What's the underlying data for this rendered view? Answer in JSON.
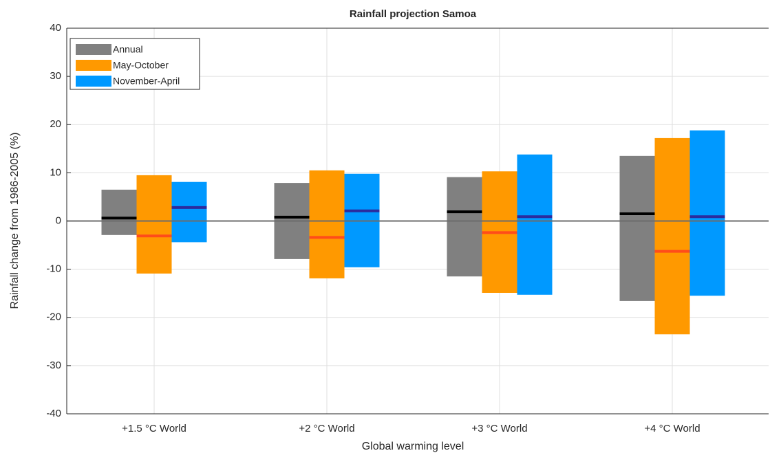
{
  "chart_data": {
    "type": "range_bar",
    "title": "Rainfall projection Samoa",
    "xlabel": "Global warming level",
    "ylabel": "Rainfall change from 1986-2005 (%)",
    "categories": [
      "+1.5 °C World",
      "+2 °C World",
      "+3 °C World",
      "+4 °C World"
    ],
    "series": [
      {
        "name": "Annual",
        "color": "#808080",
        "median_color": "#000000",
        "low": [
          -2.9,
          -7.9,
          -11.5,
          -16.6
        ],
        "high": [
          6.5,
          7.9,
          9.1,
          13.5
        ],
        "median": [
          0.6,
          0.8,
          1.9,
          1.5
        ]
      },
      {
        "name": "May-October",
        "color": "#ff9900",
        "median_color": "#ff4c1a",
        "low": [
          -10.9,
          -11.9,
          -14.9,
          -23.5
        ],
        "high": [
          9.5,
          10.5,
          10.3,
          17.2
        ],
        "median": [
          -3.1,
          -3.4,
          -2.4,
          -6.3
        ]
      },
      {
        "name": "November-April",
        "color": "#0099ff",
        "median_color": "#2b2b9e",
        "low": [
          -4.4,
          -9.6,
          -15.3,
          -15.5
        ],
        "high": [
          8.1,
          9.8,
          13.8,
          18.8
        ],
        "median": [
          2.8,
          2.1,
          0.9,
          0.9
        ]
      }
    ],
    "ylim": [
      -40,
      40
    ],
    "yticks": [
      -40,
      -30,
      -20,
      -10,
      0,
      10,
      20,
      30,
      40
    ],
    "grid": true,
    "legend": "upper-left"
  }
}
